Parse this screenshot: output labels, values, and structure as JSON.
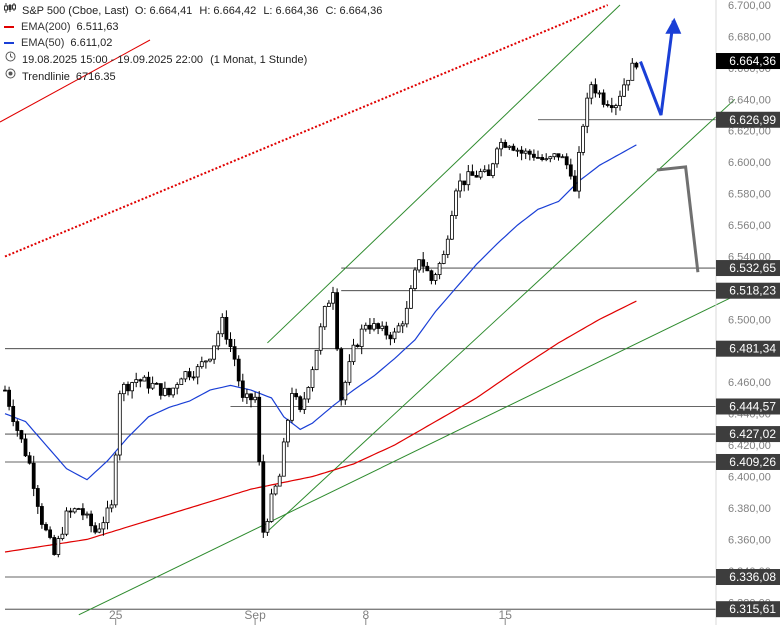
{
  "legend": {
    "instrument": "S&P 500 (Cboe, Last)",
    "open": "O: 6.664,41",
    "high": "H: 6.664,42",
    "low": "L: 6.664,36",
    "close": "C: 6.664,36",
    "ema200_label": "EMA(200)",
    "ema200_value": "6.511,63",
    "ema50_label": "EMA(50)",
    "ema50_value": "6.611,02",
    "range": "19.08.2025 15:00 - 19.09.2025 22:00",
    "interval": "(1 Monat, 1 Stunde)",
    "trend_label": "Trendlinie",
    "trend_value": "6716.35"
  },
  "colors": {
    "candle": "#000000",
    "ema200": "#e00000",
    "ema50": "#1a3fd6",
    "trendline": "#e00000",
    "channel": "#2e8b2e",
    "level": "#333333",
    "projection_up": "#1a3fd6",
    "projection_down": "#707070",
    "label_bg": "#3d3d3d",
    "label_fg": "#ffffff",
    "axis_text": "#808080"
  },
  "chart_data": {
    "type": "candlestick",
    "title": "S&P 500 (Cboe, Last)",
    "xlabel": "",
    "ylabel": "",
    "ylim": [
      6310,
      6700
    ],
    "y_ticks": [
      "6.700,00",
      "6.680,00",
      "6.660,00",
      "6.640,00",
      "6.620,00",
      "6.600,00",
      "6.580,00",
      "6.560,00",
      "6.540,00",
      "6.520,00",
      "6.500,00",
      "6.480,00",
      "6.460,00",
      "6.440,00",
      "6.420,00",
      "6.400,00",
      "6.380,00",
      "6.360,00",
      "6.340,00",
      "6.320,00"
    ],
    "x_ticks": [
      {
        "label": "25",
        "index": 27
      },
      {
        "label": "Sep",
        "index": 61
      },
      {
        "label": "8",
        "index": 88
      },
      {
        "label": "15",
        "index": 122
      }
    ],
    "x_count": 155,
    "close_path": [
      [
        0,
        6455
      ],
      [
        3,
        6430
      ],
      [
        6,
        6408
      ],
      [
        9,
        6372
      ],
      [
        12,
        6350
      ],
      [
        15,
        6375
      ],
      [
        18,
        6380
      ],
      [
        22,
        6365
      ],
      [
        26,
        6380
      ],
      [
        28,
        6455
      ],
      [
        32,
        6462
      ],
      [
        36,
        6458
      ],
      [
        40,
        6452
      ],
      [
        43,
        6465
      ],
      [
        47,
        6468
      ],
      [
        50,
        6478
      ],
      [
        53,
        6498
      ],
      [
        56,
        6475
      ],
      [
        58,
        6448
      ],
      [
        61,
        6450
      ],
      [
        63,
        6365
      ],
      [
        65,
        6385
      ],
      [
        67,
        6400
      ],
      [
        70,
        6455
      ],
      [
        72,
        6440
      ],
      [
        75,
        6470
      ],
      [
        78,
        6505
      ],
      [
        80,
        6520
      ],
      [
        82,
        6450
      ],
      [
        85,
        6480
      ],
      [
        88,
        6498
      ],
      [
        92,
        6492
      ],
      [
        95,
        6490
      ],
      [
        98,
        6505
      ],
      [
        101,
        6540
      ],
      [
        104,
        6525
      ],
      [
        107,
        6540
      ],
      [
        110,
        6585
      ],
      [
        113,
        6590
      ],
      [
        116,
        6593
      ],
      [
        118,
        6590
      ],
      [
        120,
        6612
      ],
      [
        123,
        6613
      ],
      [
        126,
        6606
      ],
      [
        129,
        6605
      ],
      [
        132,
        6600
      ],
      [
        135,
        6605
      ],
      [
        138,
        6595
      ],
      [
        139,
        6580
      ],
      [
        141,
        6625
      ],
      [
        143,
        6650
      ],
      [
        146,
        6640
      ],
      [
        149,
        6638
      ],
      [
        151,
        6650
      ],
      [
        153,
        6660
      ],
      [
        154,
        6664.36
      ]
    ],
    "series": [
      {
        "name": "EMA(200)",
        "values": [
          [
            0,
            6352
          ],
          [
            20,
            6360
          ],
          [
            40,
            6376
          ],
          [
            60,
            6392
          ],
          [
            75,
            6400
          ],
          [
            85,
            6408
          ],
          [
            95,
            6420
          ],
          [
            105,
            6435
          ],
          [
            115,
            6450
          ],
          [
            125,
            6468
          ],
          [
            135,
            6485
          ],
          [
            145,
            6500
          ],
          [
            154,
            6511.63
          ]
        ]
      },
      {
        "name": "EMA(50)",
        "values": [
          [
            0,
            6440
          ],
          [
            5,
            6435
          ],
          [
            10,
            6420
          ],
          [
            15,
            6405
          ],
          [
            20,
            6398
          ],
          [
            25,
            6410
          ],
          [
            30,
            6425
          ],
          [
            35,
            6438
          ],
          [
            40,
            6444
          ],
          [
            45,
            6448
          ],
          [
            50,
            6455
          ],
          [
            55,
            6458
          ],
          [
            60,
            6455
          ],
          [
            65,
            6450
          ],
          [
            68,
            6438
          ],
          [
            72,
            6430
          ],
          [
            75,
            6434
          ],
          [
            80,
            6445
          ],
          [
            85,
            6455
          ],
          [
            90,
            6464
          ],
          [
            95,
            6475
          ],
          [
            100,
            6487
          ],
          [
            105,
            6505
          ],
          [
            110,
            6520
          ],
          [
            115,
            6535
          ],
          [
            120,
            6548
          ],
          [
            125,
            6560
          ],
          [
            130,
            6570
          ],
          [
            135,
            6575
          ],
          [
            140,
            6588
          ],
          [
            145,
            6598
          ],
          [
            154,
            6611.02
          ]
        ]
      }
    ],
    "horizontal_levels": [
      {
        "value": 6626.99,
        "label": "6.626,99",
        "x_from": 130
      },
      {
        "value": 6532.65,
        "label": "6.532,65",
        "x_from": 82
      },
      {
        "value": 6518.23,
        "label": "6.518,23",
        "x_from": 82
      },
      {
        "value": 6481.34,
        "label": "6.481,34",
        "x_from": 0
      },
      {
        "value": 6444.57,
        "label": "6.444,57",
        "x_from": 55
      },
      {
        "value": 6427.02,
        "label": "6.427,02",
        "x_from": 0
      },
      {
        "value": 6409.26,
        "label": "6.409,26",
        "x_from": 0
      },
      {
        "value": 6336.08,
        "label": "6.336,08",
        "x_from": 0
      },
      {
        "value": 6315.61,
        "label": "6.315,61",
        "x_from": 0
      }
    ],
    "last_price": {
      "value": 6664.36,
      "label": "6.664,36"
    },
    "trendline": {
      "value": 6716.35,
      "points": [
        [
          0,
          6540
        ],
        [
          147,
          6700
        ]
      ]
    },
    "channel_lines": [
      {
        "points": [
          [
            64,
            6365
          ],
          [
            178,
            6640
          ]
        ]
      },
      {
        "points": [
          [
            64,
            6485
          ],
          [
            150,
            6700
          ]
        ]
      },
      {
        "points": [
          [
            18,
            6312
          ],
          [
            178,
            6515
          ]
        ]
      }
    ],
    "projection_up": {
      "points": [
        [
          155,
          6664
        ],
        [
          160,
          6630
        ],
        [
          163,
          6690
        ]
      ]
    },
    "projection_down": {
      "points": [
        [
          159,
          6595
        ],
        [
          166,
          6597
        ],
        [
          169,
          6530
        ]
      ]
    }
  }
}
